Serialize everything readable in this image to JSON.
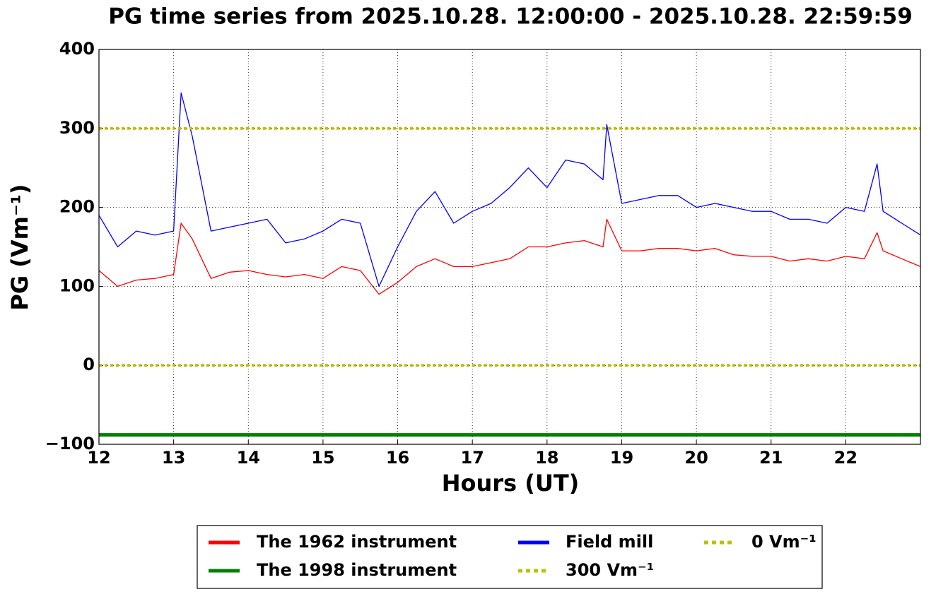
{
  "chart_data": {
    "type": "line",
    "title": "PG time series from 2025.10.28. 12:00:00 - 2025.10.28. 22:59:59",
    "x_label": "Hours (UT)",
    "y_label": "PG (Vm⁻¹)",
    "x": [
      12,
      12.25,
      12.5,
      12.75,
      13,
      13.1,
      13.25,
      13.5,
      13.75,
      14,
      14.25,
      14.5,
      14.75,
      15,
      15.25,
      15.5,
      15.75,
      16,
      16.25,
      16.5,
      16.75,
      17,
      17.25,
      17.5,
      17.75,
      18,
      18.25,
      18.5,
      18.75,
      18.8,
      19,
      19.25,
      19.5,
      19.75,
      20,
      20.25,
      20.5,
      20.75,
      21,
      21.25,
      21.5,
      21.75,
      22,
      22.25,
      22.42,
      22.5,
      22.75,
      23
    ],
    "series": [
      {
        "name": "The 1962 instrument",
        "color": "#ff0000",
        "values": [
          120,
          100,
          108,
          110,
          115,
          180,
          160,
          110,
          118,
          120,
          115,
          112,
          115,
          110,
          125,
          120,
          90,
          105,
          125,
          135,
          125,
          125,
          130,
          135,
          150,
          150,
          155,
          158,
          150,
          185,
          145,
          145,
          148,
          148,
          145,
          148,
          140,
          138,
          138,
          132,
          135,
          132,
          138,
          135,
          168,
          145,
          135,
          125
        ]
      },
      {
        "name": "The 1998 instrument",
        "color": "#008000",
        "width": 5,
        "values": [
          -88,
          -88,
          -88,
          -88,
          -88,
          -88,
          -88,
          -88,
          -88,
          -88,
          -88,
          -88,
          -88,
          -88,
          -88,
          -88,
          -88,
          -88,
          -88,
          -88,
          -88,
          -88,
          -88,
          -88,
          -88,
          -88,
          -88,
          -88,
          -88,
          -88,
          -88,
          -88,
          -88,
          -88,
          -88,
          -88,
          -88,
          -88,
          -88,
          -88,
          -88,
          -88,
          -88,
          -88,
          -88,
          -88,
          -88,
          -88
        ]
      },
      {
        "name": "Field mill",
        "color": "#0000ff",
        "values": [
          190,
          150,
          170,
          165,
          170,
          345,
          290,
          170,
          175,
          180,
          185,
          155,
          160,
          170,
          185,
          180,
          100,
          150,
          195,
          220,
          180,
          195,
          205,
          225,
          250,
          225,
          260,
          255,
          235,
          305,
          205,
          210,
          215,
          215,
          200,
          205,
          200,
          195,
          195,
          185,
          185,
          180,
          200,
          195,
          255,
          195,
          180,
          165
        ]
      }
    ],
    "hlines": [
      {
        "name": "300 Vm⁻¹",
        "value": 300,
        "color": "#bfbf00"
      },
      {
        "name": "0 Vm⁻¹",
        "value": 0,
        "color": "#bfbf00"
      }
    ],
    "xlim": [
      12,
      23
    ],
    "xticks": [
      12,
      13,
      14,
      15,
      16,
      17,
      18,
      19,
      20,
      21,
      22
    ],
    "ylim": [
      -100,
      400
    ],
    "yticks": [
      {
        "value": -100,
        "label": "−100"
      },
      0,
      100,
      200,
      300,
      400
    ],
    "grid": true,
    "legend": "below"
  }
}
